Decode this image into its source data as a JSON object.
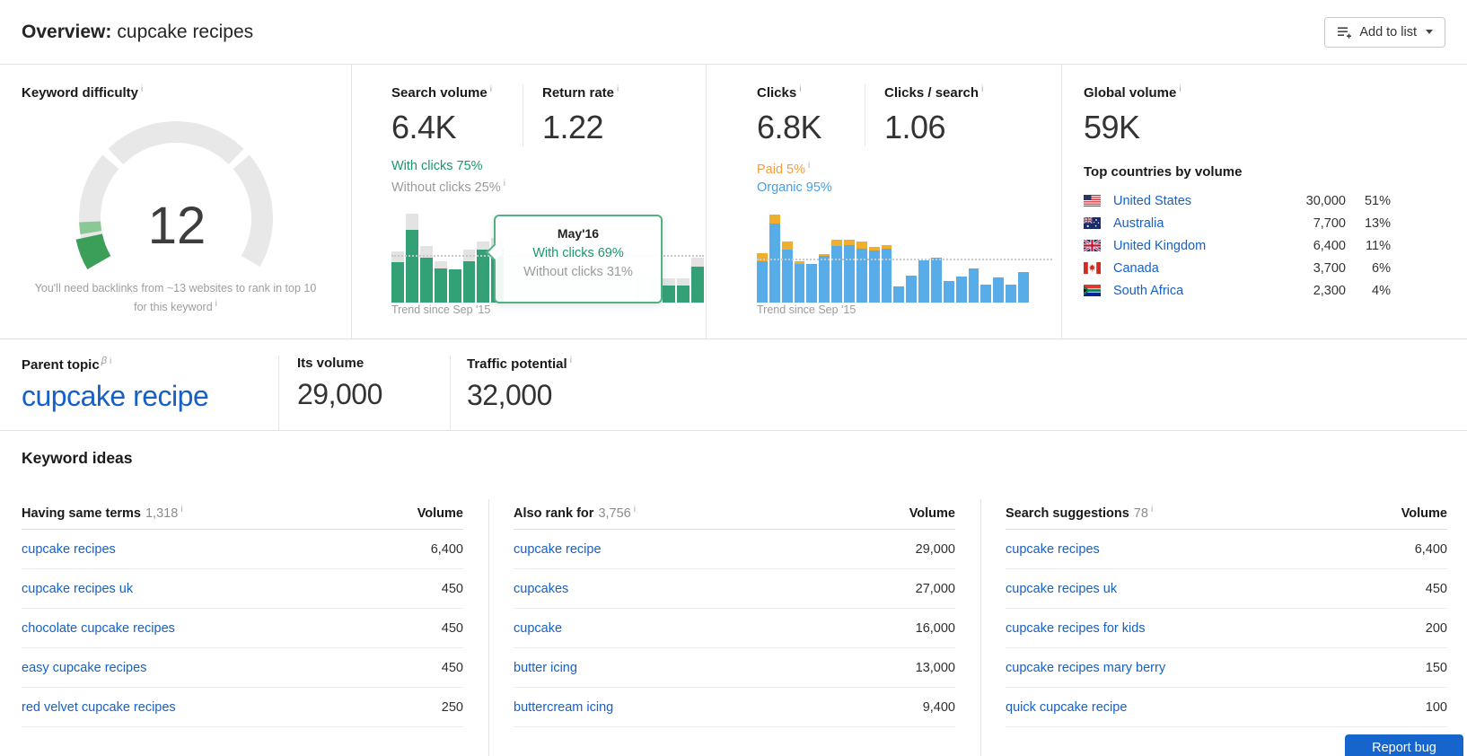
{
  "ui": {
    "info_glyph": "i"
  },
  "header": {
    "title_prefix": "Overview:",
    "title_keyword": "cupcake recipes",
    "add_to_list_label": "Add to list"
  },
  "metrics": {
    "keyword_difficulty": {
      "label": "Keyword difficulty",
      "value": "12",
      "caption": "You'll need backlinks from ~13 websites to rank in top 10 for this keyword"
    },
    "search_volume": {
      "label": "Search volume",
      "value": "6.4K",
      "with_clicks": "With clicks 75%",
      "without_clicks": "Without clicks 25%"
    },
    "return_rate": {
      "label": "Return rate",
      "value": "1.22"
    },
    "clicks": {
      "label": "Clicks",
      "value": "6.8K",
      "paid": "Paid 5%",
      "organic": "Organic 95%"
    },
    "clicks_per_search": {
      "label": "Clicks / search",
      "value": "1.06"
    },
    "global_volume": {
      "label": "Global volume",
      "value": "59K",
      "top_countries_label": "Top countries by volume",
      "countries": [
        {
          "name": "United States",
          "volume": "30,000",
          "share": "51%"
        },
        {
          "name": "Australia",
          "volume": "7,700",
          "share": "13%"
        },
        {
          "name": "United Kingdom",
          "volume": "6,400",
          "share": "11%"
        },
        {
          "name": "Canada",
          "volume": "3,700",
          "share": "6%"
        },
        {
          "name": "South Africa",
          "volume": "2,300",
          "share": "4%"
        }
      ]
    }
  },
  "parent_topic": {
    "label": "Parent topic",
    "beta_mark": "β",
    "value": "cupcake recipe"
  },
  "its_volume": {
    "label": "Its volume",
    "value": "29,000"
  },
  "traffic_potential": {
    "label": "Traffic potential",
    "value": "32,000"
  },
  "keyword_ideas": {
    "title": "Keyword ideas",
    "volume_header": "Volume",
    "tables": [
      {
        "name": "Having same terms",
        "count": "1,318",
        "rows": [
          {
            "keyword": "cupcake recipes",
            "volume": "6,400"
          },
          {
            "keyword": "cupcake recipes uk",
            "volume": "450"
          },
          {
            "keyword": "chocolate cupcake recipes",
            "volume": "450"
          },
          {
            "keyword": "easy cupcake recipes",
            "volume": "450"
          },
          {
            "keyword": "red velvet cupcake recipes",
            "volume": "250"
          }
        ]
      },
      {
        "name": "Also rank for",
        "count": "3,756",
        "rows": [
          {
            "keyword": "cupcake recipe",
            "volume": "29,000"
          },
          {
            "keyword": "cupcakes",
            "volume": "27,000"
          },
          {
            "keyword": "cupcake",
            "volume": "16,000"
          },
          {
            "keyword": "butter icing",
            "volume": "13,000"
          },
          {
            "keyword": "buttercream icing",
            "volume": "9,400"
          }
        ]
      },
      {
        "name": "Search suggestions",
        "count": "78",
        "rows": [
          {
            "keyword": "cupcake recipes",
            "volume": "6,400"
          },
          {
            "keyword": "cupcake recipes uk",
            "volume": "450"
          },
          {
            "keyword": "cupcake recipes for kids",
            "volume": "200"
          },
          {
            "keyword": "cupcake recipes mary berry",
            "volume": "150"
          },
          {
            "keyword": "quick cupcake recipe",
            "volume": "100"
          }
        ]
      }
    ]
  },
  "report_bug_label": "Report bug",
  "chart_data": [
    {
      "id": "search_volume_trend",
      "type": "stacked-bar",
      "caption": "Trend since Sep '15",
      "x_start_label": "Sep '15",
      "legend": {
        "main": "With clicks",
        "cap": "Without clicks"
      },
      "colors": {
        "main": "#33a076",
        "cap": "#e3e3e3"
      },
      "dotline_pct_from_top": 53,
      "bar_unit": "percent of chart height (estimated from pixels)",
      "highlight": {
        "title": "May'16",
        "with_clicks": "With clicks 69%",
        "without_clicks": "Without clicks 31%"
      },
      "bars": [
        {
          "main": 40,
          "cap": 11
        },
        {
          "main": 72,
          "cap": 16
        },
        {
          "main": 45,
          "cap": 12
        },
        {
          "main": 34,
          "cap": 7
        },
        {
          "main": 33,
          "cap": 0
        },
        {
          "main": 41,
          "cap": 12
        },
        {
          "main": 53,
          "cap": 8
        },
        {
          "main": 53,
          "cap": 12
        },
        {
          "main": 52,
          "cap": 18,
          "faded": true
        },
        {
          "main": 50,
          "cap": 20,
          "faded": true
        },
        {
          "main": 45,
          "cap": 10,
          "faded": true
        },
        {
          "main": 40,
          "cap": 8,
          "faded": true
        },
        {
          "main": 35,
          "cap": 6,
          "faded": true
        },
        {
          "main": 30,
          "cap": 8,
          "faded": true
        },
        {
          "main": 38,
          "cap": 6,
          "faded": true
        },
        {
          "main": 42,
          "cap": 8,
          "faded": true
        },
        {
          "main": 35,
          "cap": 10,
          "faded": true
        },
        {
          "main": 30,
          "cap": 6,
          "faded": true
        },
        {
          "main": 25,
          "cap": 5,
          "faded": true
        },
        {
          "main": 17,
          "cap": 7
        },
        {
          "main": 17,
          "cap": 7
        },
        {
          "main": 36,
          "cap": 9
        }
      ]
    },
    {
      "id": "clicks_trend",
      "type": "stacked-bar",
      "caption": "Trend since Sep '15",
      "x_start_label": "Sep '15",
      "legend": {
        "main": "Organic clicks",
        "cap": "Paid clicks"
      },
      "colors": {
        "main": "#58ade8",
        "cap": "#f0ae2c"
      },
      "dotline_pct_from_top": 56,
      "bar_unit": "percent of chart height (estimated from pixels)",
      "bars": [
        {
          "main": 41,
          "cap": 8
        },
        {
          "main": 79,
          "cap": 9
        },
        {
          "main": 53,
          "cap": 8
        },
        {
          "main": 38,
          "cap": 3
        },
        {
          "main": 38,
          "cap": 0
        },
        {
          "main": 46,
          "cap": 2
        },
        {
          "main": 56,
          "cap": 6
        },
        {
          "main": 57,
          "cap": 5
        },
        {
          "main": 54,
          "cap": 7
        },
        {
          "main": 52,
          "cap": 4
        },
        {
          "main": 54,
          "cap": 4
        },
        {
          "main": 16,
          "cap": 0
        },
        {
          "main": 27,
          "cap": 0
        },
        {
          "main": 42,
          "cap": 0
        },
        {
          "main": 45,
          "cap": 0
        },
        {
          "main": 21,
          "cap": 0
        },
        {
          "main": 26,
          "cap": 0
        },
        {
          "main": 34,
          "cap": 0
        },
        {
          "main": 18,
          "cap": 0
        },
        {
          "main": 25,
          "cap": 0
        },
        {
          "main": 18,
          "cap": 0
        },
        {
          "main": 30,
          "cap": 0
        }
      ]
    }
  ]
}
